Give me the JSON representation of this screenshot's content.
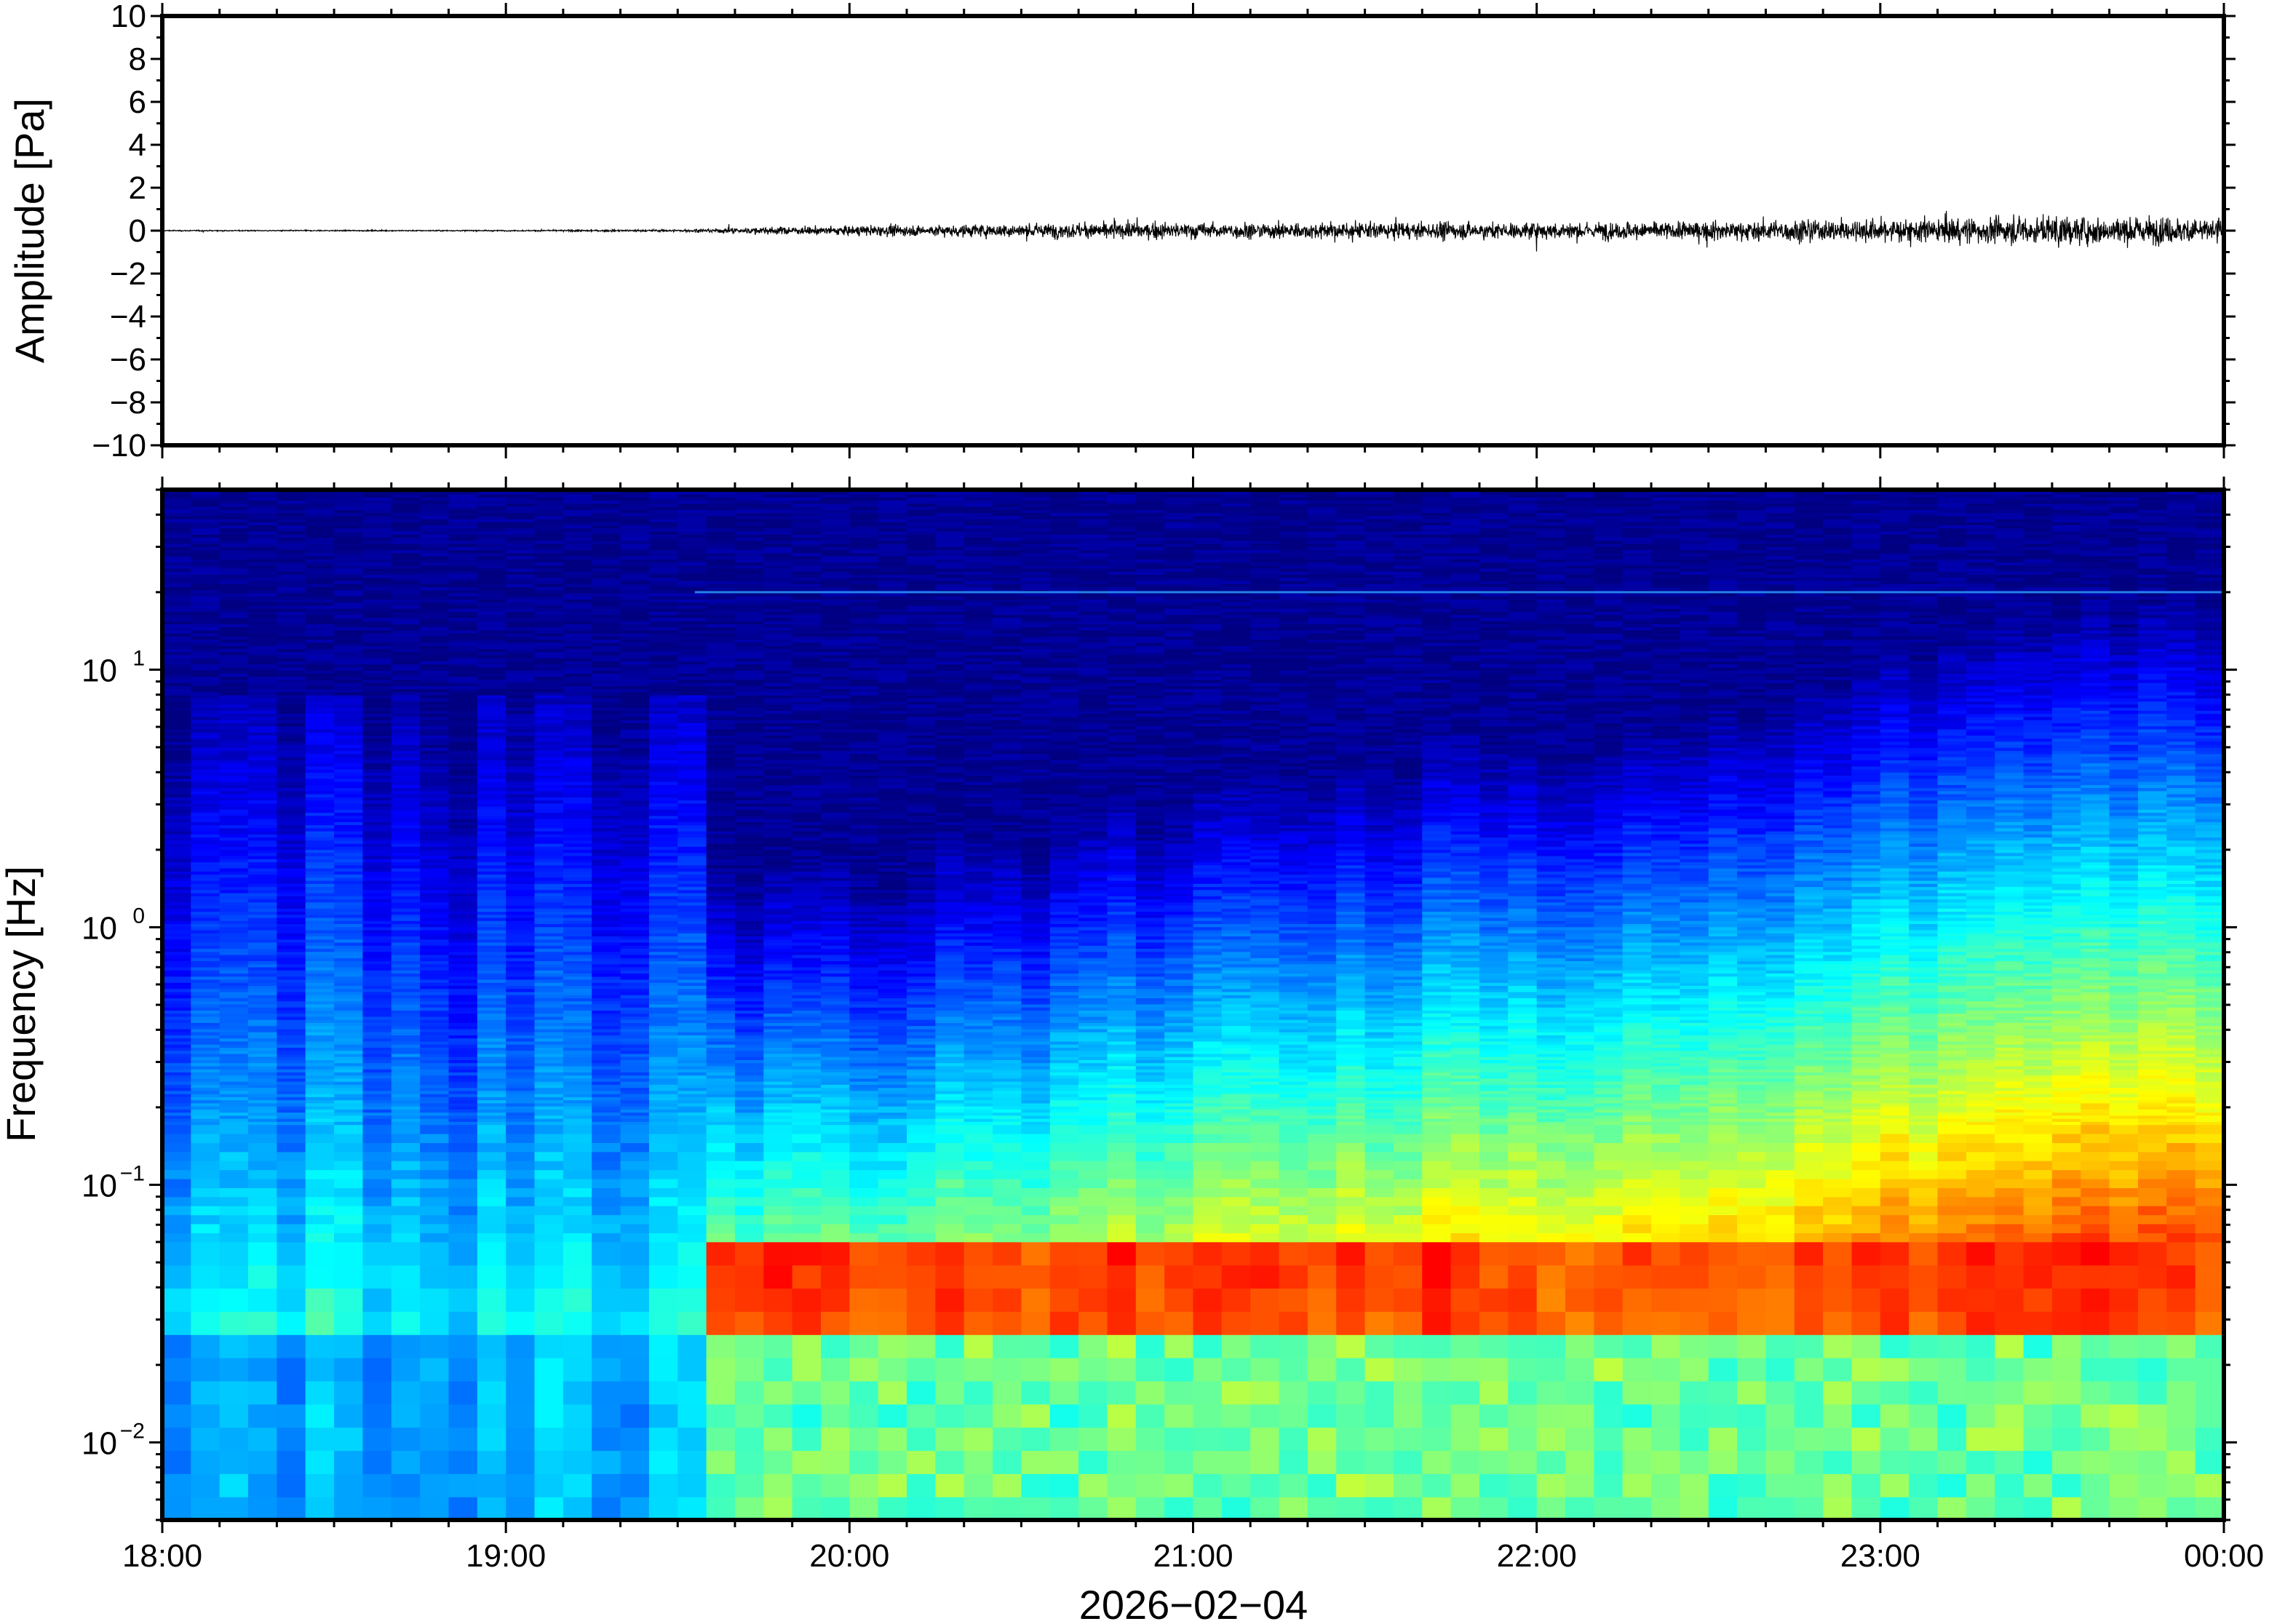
{
  "chart_data": [
    {
      "type": "line",
      "ylabel": "Amplitude [Pa]",
      "ylim": [
        -10,
        10
      ],
      "yticks": [
        "10",
        "8",
        "6",
        "4",
        "2",
        "0",
        "−2",
        "−4",
        "−6",
        "−8",
        "−10"
      ],
      "xlim": [
        "18:00",
        "00:00"
      ],
      "series": [
        {
          "values_note_x": [
            18.0,
            18.5,
            19.0,
            19.5,
            20.0,
            20.5,
            21.0,
            21.5,
            22.0,
            22.5,
            23.0,
            23.5,
            24.0
          ],
          "envelope_x": [
            18.0,
            18.5,
            19.0,
            19.5,
            19.75,
            20.0,
            20.5,
            21.0,
            21.5,
            22.0,
            22.5,
            23.0,
            23.5,
            24.0
          ],
          "envelope_y": [
            0.05,
            0.05,
            0.05,
            0.1,
            0.3,
            0.4,
            0.6,
            0.7,
            0.7,
            0.7,
            0.8,
            1.0,
            1.2,
            1.1
          ],
          "color": "#000000"
        }
      ]
    },
    {
      "type": "heatmap",
      "ylabel": "Frequency [Hz]",
      "yscale": "log",
      "ylim": [
        0.005,
        50
      ],
      "yticks": [
        {
          "base": "10",
          "exp": "−2"
        },
        {
          "base": "10",
          "exp": "−1"
        },
        {
          "base": "10",
          "exp": "0"
        },
        {
          "base": "10",
          "exp": "1"
        }
      ],
      "xticks": [
        "18:00",
        "19:00",
        "20:00",
        "21:00",
        "22:00",
        "23:00",
        "00:00"
      ],
      "xlabel": "2026−02−04",
      "colormap": [
        "#000080",
        "#0000ff",
        "#0080ff",
        "#00ffff",
        "#80ff80",
        "#ffff00",
        "#ff8000",
        "#ff0000"
      ],
      "quiet_period_end": "19:33",
      "noise_line_hz": 20
    }
  ]
}
